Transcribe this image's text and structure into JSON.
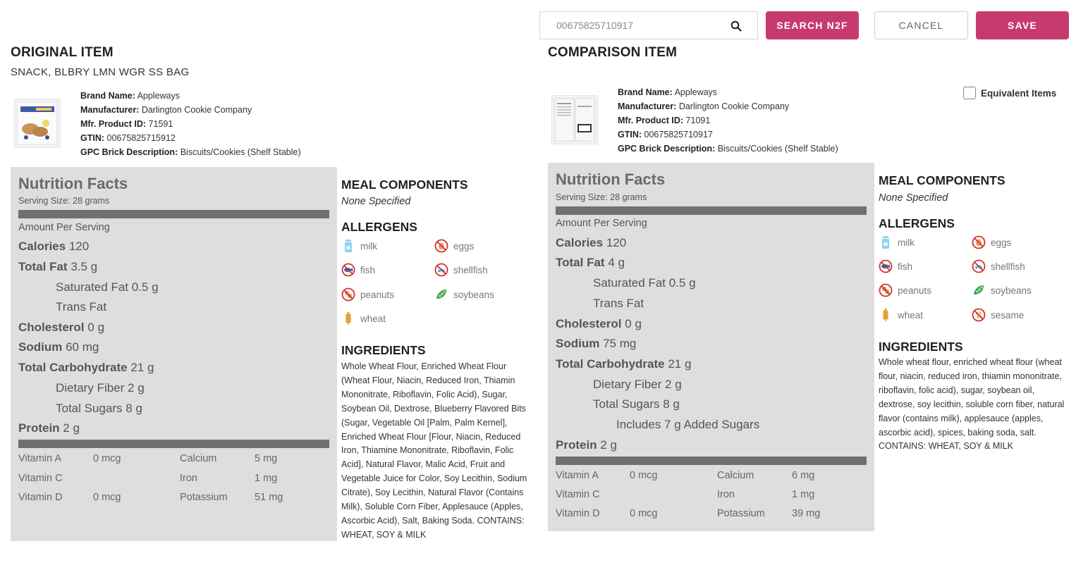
{
  "toolbar": {
    "search_value": "00675825710917",
    "search_button": "SEARCH N2F",
    "cancel_button": "CANCEL",
    "save_button": "SAVE"
  },
  "original": {
    "heading": "ORIGINAL ITEM",
    "name": "SNACK, BLBRY LMN WGR SS BAG",
    "meta": [
      {
        "label": "Brand Name:",
        "value": "Appleways"
      },
      {
        "label": "Manufacturer:",
        "value": "Darlington Cookie Company"
      },
      {
        "label": "Mfr. Product ID:",
        "value": "71591"
      },
      {
        "label": "GTIN:",
        "value": "00675825715912"
      },
      {
        "label": "GPC Brick Description:",
        "value": "Biscuits/Cookies (Shelf Stable)"
      }
    ],
    "nutrition": {
      "title": "Nutrition Facts",
      "serving": "Serving Size: 28 grams",
      "amount_per": "Amount Per Serving",
      "calories_label": "Calories",
      "calories": "120",
      "fat_label": "Total Fat",
      "fat": "3.5 g",
      "satfat_label": "Saturated Fat 0.5 g",
      "transfat_label": "Trans Fat",
      "chol_label": "Cholesterol",
      "chol": "0 g",
      "sodium_label": "Sodium",
      "sodium": "60 mg",
      "carb_label": "Total Carbohydrate",
      "carb": "21 g",
      "fiber_label": "Dietary Fiber 2 g",
      "sugars_label": "Total Sugars 8 g",
      "protein_label": "Protein",
      "protein": "2 g",
      "vitamins": [
        {
          "name": "Vitamin A",
          "value": "0 mcg",
          "name2": "Calcium",
          "value2": "5 mg"
        },
        {
          "name": "Vitamin C",
          "value": "",
          "name2": "Iron",
          "value2": "1 mg"
        },
        {
          "name": "Vitamin D",
          "value": "0 mcg",
          "name2": "Potassium",
          "value2": "51 mg"
        }
      ]
    },
    "meal_heading": "MEAL COMPONENTS",
    "meal_none": "None Specified",
    "allergens_heading": "ALLERGENS",
    "allergens": [
      "milk",
      "eggs",
      "fish",
      "shellfish",
      "peanuts",
      "soybeans",
      "wheat"
    ],
    "ingredients_heading": "INGREDIENTS",
    "ingredients": "Whole Wheat Flour, Enriched Wheat Flour (Wheat Flour, Niacin, Reduced Iron, Thiamin Mononitrate, Riboflavin, Folic Acid), Sugar, Soybean Oil, Dextrose, Blueberry Flavored Bits (Sugar, Vegetable Oil [Palm, Palm Kernel], Enriched Wheat Flour [Flour, Niacin, Reduced Iron, Thiamine Mononitrate, Riboflavin, Folic Acid], Natural Flavor, Malic Acid, Fruit and Vegetable Juice for Color, Soy Lecithin, Sodium Citrate), Soy Lecithin, Natural Flavor (Contains Milk), Soluble Corn Fiber, Applesauce (Apples, Ascorbic Acid), Salt, Baking Soda. CONTAINS: WHEAT, SOY & MILK"
  },
  "comparison": {
    "heading": "COMPARISON ITEM",
    "equivalent_label": "Equivalent Items",
    "meta": [
      {
        "label": "Brand Name:",
        "value": "Appleways"
      },
      {
        "label": "Manufacturer:",
        "value": "Darlington Cookie Company"
      },
      {
        "label": "Mfr. Product ID:",
        "value": "71091"
      },
      {
        "label": "GTIN:",
        "value": "00675825710917"
      },
      {
        "label": "GPC Brick Description:",
        "value": "Biscuits/Cookies (Shelf Stable)"
      }
    ],
    "nutrition": {
      "title": "Nutrition Facts",
      "serving": "Serving Size: 28 grams",
      "amount_per": "Amount Per Serving",
      "calories_label": "Calories",
      "calories": "120",
      "fat_label": "Total Fat",
      "fat": "4 g",
      "satfat_label": "Saturated Fat 0.5 g",
      "transfat_label": "Trans Fat",
      "chol_label": "Cholesterol",
      "chol": "0 g",
      "sodium_label": "Sodium",
      "sodium": "75 mg",
      "carb_label": "Total Carbohydrate",
      "carb": "21 g",
      "fiber_label": "Dietary Fiber 2 g",
      "sugars_label": "Total Sugars 8 g",
      "added_sugars_label": "Includes 7 g Added Sugars",
      "protein_label": "Protein",
      "protein": "2 g",
      "vitamins": [
        {
          "name": "Vitamin A",
          "value": "0 mcg",
          "name2": "Calcium",
          "value2": "6 mg"
        },
        {
          "name": "Vitamin C",
          "value": "",
          "name2": "Iron",
          "value2": "1 mg"
        },
        {
          "name": "Vitamin D",
          "value": "0 mcg",
          "name2": "Potassium",
          "value2": "39 mg"
        }
      ]
    },
    "meal_heading": "MEAL COMPONENTS",
    "meal_none": "None Specified",
    "allergens_heading": "ALLERGENS",
    "allergens": [
      "milk",
      "eggs",
      "fish",
      "shellfish",
      "peanuts",
      "soybeans",
      "wheat",
      "sesame"
    ],
    "ingredients_heading": "INGREDIENTS",
    "ingredients": "Whole wheat flour, enriched wheat flour (wheat flour, niacin, reduced iron, thiamin mononitrate, riboflavin, folic acid), sugar, soybean oil, dextrose, soy lecithin, soluble corn fiber, natural flavor (contains milk), applesauce (apples, ascorbic acid), spices, baking soda, salt. CONTAINS: WHEAT, SOY & MILK"
  },
  "icons": {
    "search": "search-icon",
    "milk": "milk-icon",
    "eggs": "eggs-icon",
    "fish": "fish-icon",
    "shellfish": "shellfish-icon",
    "peanuts": "peanuts-icon",
    "soybeans": "soybeans-icon",
    "wheat": "wheat-icon",
    "sesame": "sesame-icon"
  },
  "colors": {
    "accent": "#c73a70",
    "panel": "#dedede",
    "bar": "#707070"
  }
}
